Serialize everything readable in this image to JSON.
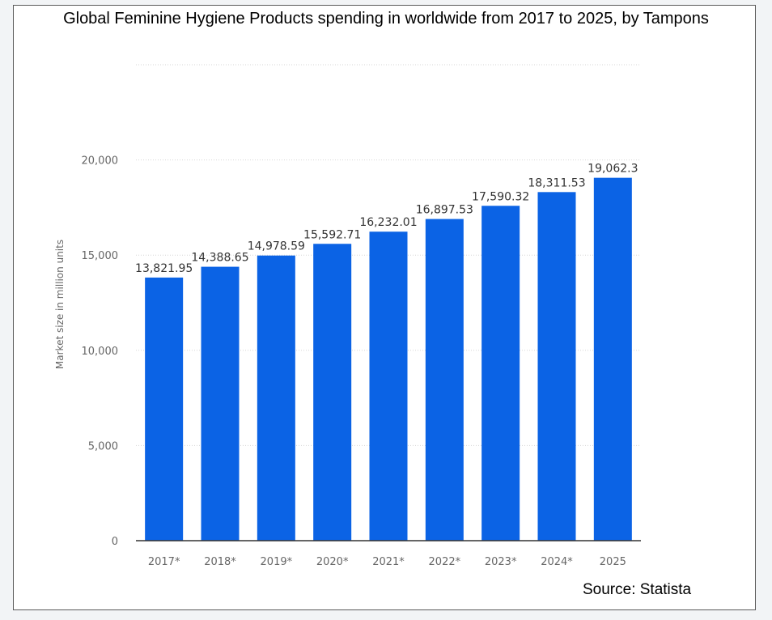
{
  "page": {
    "title": "Global Feminine Hygiene Products spending in worldwide from 2017 to 2025, by Tampons",
    "source": "Source: Statista"
  },
  "colors": {
    "bar": "#0b63e5",
    "grid": "#d6d6d6",
    "axis": "#333333"
  },
  "chart_data": {
    "type": "bar",
    "title": "Global Feminine Hygiene Products spending in worldwide from 2017 to 2025, by Tampons",
    "xlabel": "",
    "ylabel": "Market size in million units",
    "categories": [
      "2017*",
      "2018*",
      "2019*",
      "2020*",
      "2021*",
      "2022*",
      "2023*",
      "2024*",
      "2025"
    ],
    "values": [
      13821.95,
      14388.65,
      14978.59,
      15592.71,
      16232.01,
      16897.53,
      17590.32,
      18311.53,
      19062.3
    ],
    "value_labels": [
      "13,821.95",
      "14,388.65",
      "14,978.59",
      "15,592.71",
      "16,232.01",
      "16,897.53",
      "17,590.32",
      "18,311.53",
      "19,062.3"
    ],
    "yticks": [
      0,
      5000,
      10000,
      15000,
      20000
    ],
    "ytick_labels": [
      "0",
      "5,000",
      "10,000",
      "15,000",
      "20,000"
    ],
    "ylim": [
      0,
      25000
    ],
    "grid": true,
    "legend": "none"
  }
}
